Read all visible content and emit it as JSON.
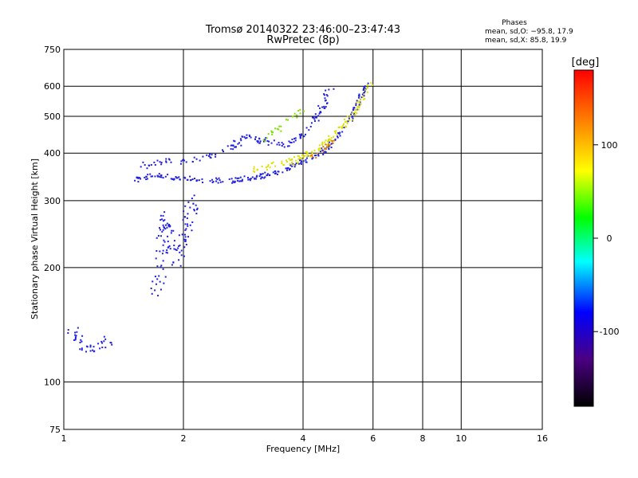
{
  "chart_data": {
    "type": "scatter",
    "title": "Tromsø 20140322 23:46:00–23:47:43",
    "subtitle": "RwPretec (8p)",
    "xlabel": "Frequency [MHz]",
    "ylabel": "Stationary phase Virtual Height [km]",
    "x_scale": "log",
    "y_scale": "log",
    "xlim": [
      1,
      16
    ],
    "ylim": [
      75,
      750
    ],
    "x_ticks": [
      1,
      2,
      4,
      6,
      8,
      10,
      16
    ],
    "y_ticks": [
      75,
      100,
      200,
      300,
      400,
      500,
      600,
      750
    ],
    "x_gridlines": [
      2,
      4,
      6,
      8,
      10
    ],
    "y_gridlines": [
      100,
      200,
      300,
      400,
      500,
      600
    ],
    "grid": true,
    "legend": {
      "title": "Phases",
      "lines": [
        "mean, sd,O: −95.8, 17.9",
        "mean, sd,X:  85.8, 19.9"
      ],
      "placement": "top-right"
    },
    "colorbar": {
      "label": "[deg]",
      "range": [
        -180,
        180
      ],
      "ticks": [
        100,
        0,
        -100
      ],
      "colors": [
        "#000000",
        "#4b0082",
        "#0000ff",
        "#00ffff",
        "#00ff00",
        "#ffff00",
        "#ff8000",
        "#ff0000"
      ]
    },
    "series": [
      {
        "color": "#2020e0",
        "phase": -95,
        "trace": [
          [
            1.05,
            140
          ],
          [
            1.08,
            130
          ],
          [
            1.12,
            125
          ],
          [
            1.18,
            122
          ],
          [
            1.25,
            125
          ],
          [
            1.3,
            130
          ]
        ],
        "count": 40,
        "spread": 0.03
      },
      {
        "color": "#2020e0",
        "phase": -95,
        "trace": [
          [
            1.52,
            340
          ],
          [
            1.7,
            350
          ],
          [
            1.9,
            345
          ],
          [
            2.2,
            340
          ],
          [
            2.6,
            338
          ],
          [
            3.0,
            345
          ],
          [
            3.4,
            355
          ],
          [
            3.8,
            370
          ],
          [
            4.2,
            390
          ],
          [
            4.5,
            405
          ],
          [
            4.8,
            430
          ],
          [
            5.2,
            480
          ],
          [
            5.6,
            560
          ],
          [
            5.8,
            620
          ]
        ],
        "count": 240,
        "spread": 0.015
      },
      {
        "color": "#2020e0",
        "phase": -95,
        "trace": [
          [
            1.55,
            370
          ],
          [
            1.8,
            380
          ],
          [
            2.2,
            385
          ],
          [
            2.6,
            410
          ],
          [
            2.9,
            440
          ],
          [
            3.2,
            430
          ],
          [
            3.6,
            420
          ],
          [
            3.9,
            440
          ],
          [
            4.2,
            480
          ],
          [
            4.5,
            530
          ],
          [
            4.7,
            600
          ]
        ],
        "count": 150,
        "spread": 0.02
      },
      {
        "color": "#2020e0",
        "phase": -100,
        "trace": [
          [
            1.72,
            170
          ],
          [
            1.75,
            200
          ],
          [
            1.78,
            240
          ],
          [
            1.8,
            280
          ],
          [
            1.85,
            230
          ],
          [
            1.92,
            210
          ],
          [
            2.0,
            240
          ],
          [
            2.08,
            280
          ],
          [
            2.12,
            300
          ]
        ],
        "count": 120,
        "spread": 0.04
      },
      {
        "color": "#e0e000",
        "phase": 90,
        "trace": [
          [
            3.0,
            360
          ],
          [
            3.4,
            375
          ],
          [
            3.8,
            380
          ],
          [
            4.1,
            395
          ],
          [
            4.5,
            420
          ],
          [
            4.9,
            460
          ],
          [
            5.3,
            500
          ],
          [
            5.7,
            560
          ],
          [
            5.9,
            620
          ]
        ],
        "count": 130,
        "spread": 0.02
      },
      {
        "color": "#80e000",
        "phase": 60,
        "trace": [
          [
            3.2,
            430
          ],
          [
            3.5,
            470
          ],
          [
            3.8,
            500
          ],
          [
            4.0,
            510
          ]
        ],
        "count": 25,
        "spread": 0.02
      },
      {
        "color": "#e08000",
        "phase": 140,
        "trace": [
          [
            4.2,
            390
          ],
          [
            4.5,
            410
          ],
          [
            4.8,
            430
          ]
        ],
        "count": 18,
        "spread": 0.015
      }
    ]
  }
}
